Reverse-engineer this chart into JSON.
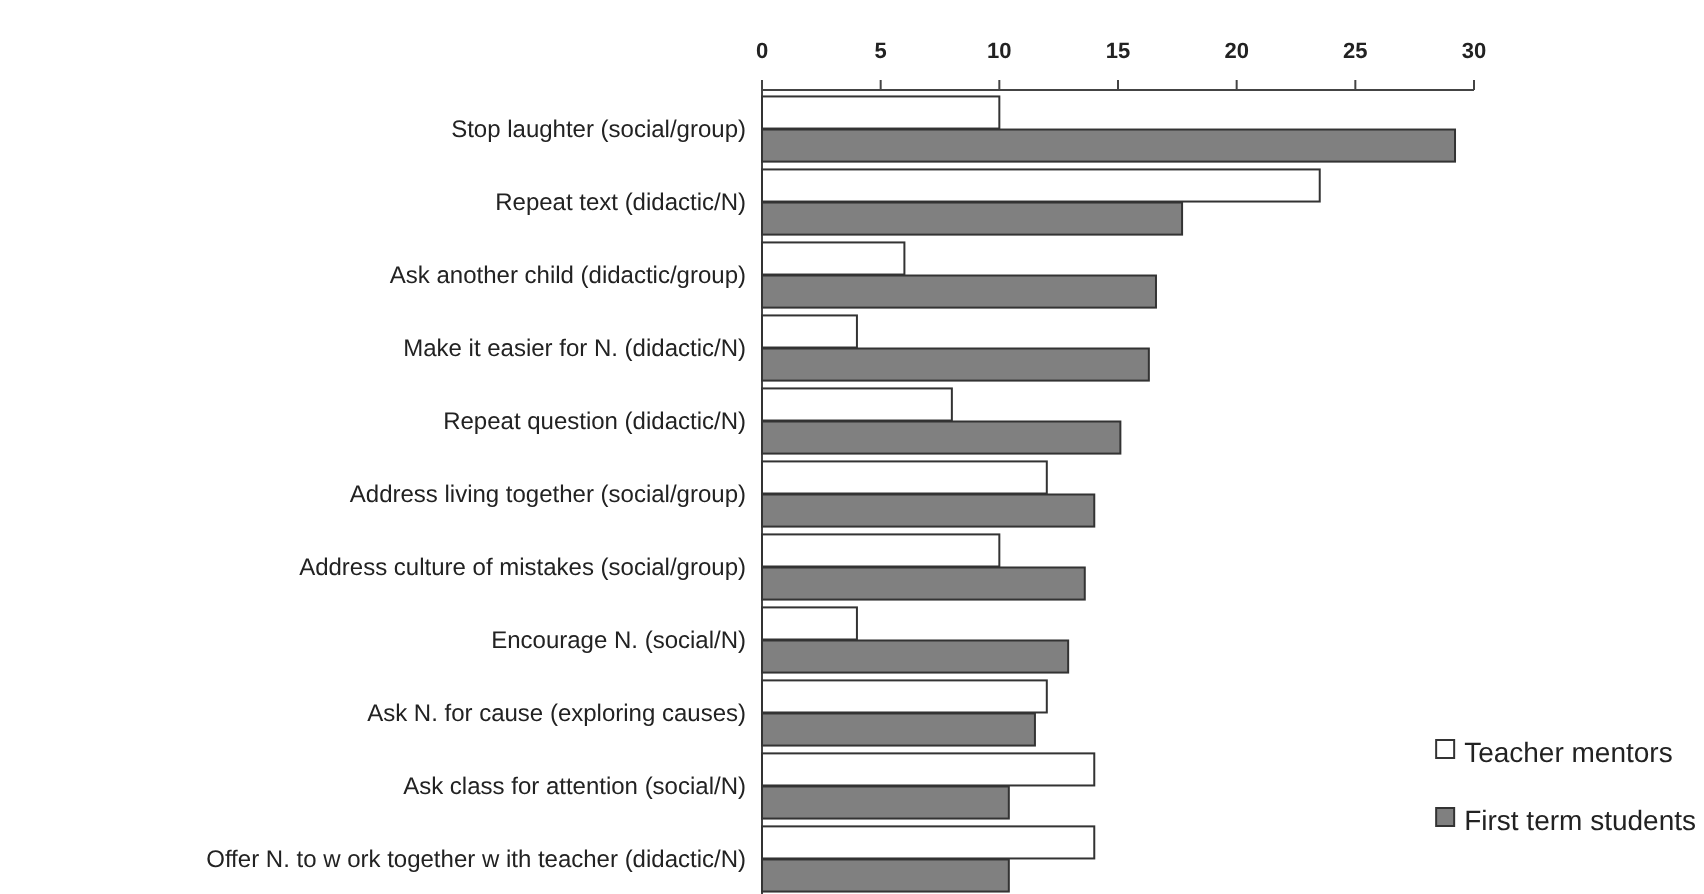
{
  "chart_data": {
    "type": "bar",
    "orientation": "horizontal",
    "categories": [
      "Stop laughter (social/group)",
      "Repeat text (didactic/N)",
      "Ask another child (didactic/group)",
      "Make it easier for N. (didactic/N)",
      "Repeat question (didactic/N)",
      "Address living together (social/group)",
      "Address culture of mistakes (social/group)",
      "Encourage N. (social/N)",
      "Ask N. for cause (exploring causes)",
      "Ask class for attention (social/N)",
      "Offer N. to w ork together w ith teacher (didactic/N)"
    ],
    "series": [
      {
        "name": "Teacher mentors",
        "color": "#ffffff",
        "values": [
          10,
          23.5,
          6,
          4,
          8,
          12,
          10,
          4,
          12,
          14,
          14
        ]
      },
      {
        "name": "First term students",
        "color": "#808080",
        "values": [
          29.2,
          17.7,
          16.6,
          16.3,
          15.1,
          14,
          13.6,
          12.9,
          11.5,
          10.4,
          10.4
        ]
      }
    ],
    "xlim": [
      0,
      30
    ],
    "xticks": [
      0,
      5,
      10,
      15,
      20,
      25,
      30
    ],
    "grid": false,
    "legend": "bottom right"
  }
}
